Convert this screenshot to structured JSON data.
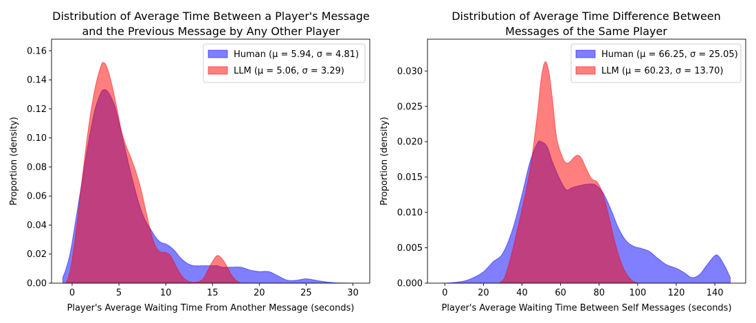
{
  "chart_data": [
    {
      "type": "area",
      "title": [
        "Distribution of Average Time Between a Player's Message",
        "and the Previous Message by Any Other Player"
      ],
      "xlabel": "Player's Average Waiting Time From Another Message (seconds)",
      "ylabel": "Proportion (density)",
      "xlim": [
        -2.2,
        31.8
      ],
      "ylim": [
        0,
        0.168
      ],
      "xticks": [
        0,
        5,
        10,
        15,
        20,
        25,
        30
      ],
      "xtick_labels": [
        "0",
        "5",
        "10",
        "15",
        "20",
        "25",
        "30"
      ],
      "yticks": [
        0,
        0.02,
        0.04,
        0.06,
        0.08,
        0.1,
        0.12,
        0.14,
        0.16
      ],
      "ytick_labels": [
        "0.00",
        "0.02",
        "0.04",
        "0.06",
        "0.08",
        "0.10",
        "0.12",
        "0.14",
        "0.16"
      ],
      "grid": false,
      "legend_placement": "top-right",
      "series": [
        {
          "name": "Human (μ = 5.94, σ = 4.81)",
          "color": "#0000ff",
          "points": [
            [
              -1.0,
              0.004
            ],
            [
              -0.7,
              0.009
            ],
            [
              -0.3,
              0.018
            ],
            [
              0.0,
              0.028
            ],
            [
              0.5,
              0.048
            ],
            [
              1.0,
              0.068
            ],
            [
              1.5,
              0.088
            ],
            [
              2.0,
              0.106
            ],
            [
              2.5,
              0.121
            ],
            [
              3.0,
              0.13
            ],
            [
              3.3,
              0.133
            ],
            [
              3.8,
              0.132
            ],
            [
              4.5,
              0.123
            ],
            [
              5.0,
              0.111
            ],
            [
              5.5,
              0.097
            ],
            [
              6.0,
              0.083
            ],
            [
              6.5,
              0.07
            ],
            [
              7.0,
              0.058
            ],
            [
              7.5,
              0.048
            ],
            [
              8.0,
              0.041
            ],
            [
              8.5,
              0.036
            ],
            [
              9.0,
              0.031
            ],
            [
              9.5,
              0.028
            ],
            [
              10.0,
              0.027
            ],
            [
              10.5,
              0.025
            ],
            [
              11.0,
              0.022
            ],
            [
              11.5,
              0.018
            ],
            [
              12.0,
              0.015
            ],
            [
              12.5,
              0.013
            ],
            [
              13.0,
              0.012
            ],
            [
              14.0,
              0.012
            ],
            [
              15.0,
              0.012
            ],
            [
              15.5,
              0.012
            ],
            [
              16.0,
              0.011
            ],
            [
              17.0,
              0.011
            ],
            [
              18.0,
              0.011
            ],
            [
              19.0,
              0.009
            ],
            [
              20.0,
              0.008
            ],
            [
              21.0,
              0.008
            ],
            [
              22.0,
              0.005
            ],
            [
              23.0,
              0.002
            ],
            [
              24.0,
              0.002
            ],
            [
              25.0,
              0.003
            ],
            [
              26.0,
              0.002
            ],
            [
              27.0,
              0.001
            ],
            [
              28.0,
              0.0003
            ],
            [
              30.0,
              0.0
            ]
          ]
        },
        {
          "name": "LLM (μ = 5.06, σ = 3.29)",
          "color": "#ff0000",
          "points": [
            [
              -0.7,
              0.0
            ],
            [
              -0.4,
              0.004
            ],
            [
              0.0,
              0.016
            ],
            [
              0.5,
              0.04
            ],
            [
              1.0,
              0.068
            ],
            [
              1.5,
              0.095
            ],
            [
              2.0,
              0.118
            ],
            [
              2.5,
              0.136
            ],
            [
              3.0,
              0.148
            ],
            [
              3.3,
              0.152
            ],
            [
              3.7,
              0.149
            ],
            [
              4.2,
              0.138
            ],
            [
              4.8,
              0.12
            ],
            [
              5.3,
              0.104
            ],
            [
              5.8,
              0.094
            ],
            [
              6.3,
              0.086
            ],
            [
              6.8,
              0.077
            ],
            [
              7.3,
              0.066
            ],
            [
              7.8,
              0.052
            ],
            [
              8.3,
              0.038
            ],
            [
              8.8,
              0.027
            ],
            [
              9.3,
              0.022
            ],
            [
              10.0,
              0.021
            ],
            [
              10.5,
              0.019
            ],
            [
              11.0,
              0.013
            ],
            [
              11.5,
              0.007
            ],
            [
              12.0,
              0.003
            ],
            [
              12.5,
              0.001
            ],
            [
              13.0,
              0.0005
            ],
            [
              13.5,
              0.001
            ],
            [
              14.0,
              0.003
            ],
            [
              14.5,
              0.009
            ],
            [
              15.0,
              0.015
            ],
            [
              15.5,
              0.019
            ],
            [
              16.0,
              0.017
            ],
            [
              16.5,
              0.012
            ],
            [
              17.0,
              0.006
            ],
            [
              17.5,
              0.002
            ],
            [
              18.0,
              0.0
            ]
          ]
        }
      ]
    },
    {
      "type": "area",
      "title": [
        "Distribution of Average Time Difference Between",
        "Messages of the Same Player"
      ],
      "xlabel": "Player's Average Waiting Time Between Self Messages (seconds)",
      "ylabel": "Proportion (density)",
      "xlim": [
        -9,
        156
      ],
      "ylim": [
        0,
        0.0345
      ],
      "xticks": [
        0,
        20,
        40,
        60,
        80,
        100,
        120,
        140
      ],
      "xtick_labels": [
        "0",
        "20",
        "40",
        "60",
        "80",
        "100",
        "120",
        "140"
      ],
      "yticks": [
        0,
        0.005,
        0.01,
        0.015,
        0.02,
        0.025,
        0.03
      ],
      "ytick_labels": [
        "0.000",
        "0.005",
        "0.010",
        "0.015",
        "0.020",
        "0.025",
        "0.030"
      ],
      "grid": false,
      "legend_placement": "top-right",
      "series": [
        {
          "name": "Human (μ = 66.25, σ = 25.05)",
          "color": "#0000ff",
          "points": [
            [
              0,
              0.0
            ],
            [
              5,
              0.0001
            ],
            [
              10,
              0.0003
            ],
            [
              15,
              0.0008
            ],
            [
              20,
              0.0016
            ],
            [
              25,
              0.003
            ],
            [
              30,
              0.0042
            ],
            [
              35,
              0.0075
            ],
            [
              40,
              0.0125
            ],
            [
              44,
              0.017
            ],
            [
              48,
              0.0198
            ],
            [
              50,
              0.02
            ],
            [
              53,
              0.0193
            ],
            [
              56,
              0.017
            ],
            [
              60,
              0.0145
            ],
            [
              63,
              0.0132
            ],
            [
              66,
              0.0135
            ],
            [
              70,
              0.0138
            ],
            [
              74,
              0.014
            ],
            [
              78,
              0.0139
            ],
            [
              82,
              0.0128
            ],
            [
              86,
              0.0105
            ],
            [
              90,
              0.0078
            ],
            [
              94,
              0.006
            ],
            [
              98,
              0.0052
            ],
            [
              102,
              0.0049
            ],
            [
              106,
              0.0045
            ],
            [
              110,
              0.0036
            ],
            [
              115,
              0.0026
            ],
            [
              120,
              0.0021
            ],
            [
              124,
              0.0015
            ],
            [
              128,
              0.0008
            ],
            [
              132,
              0.0012
            ],
            [
              136,
              0.0026
            ],
            [
              140,
              0.0039
            ],
            [
              142,
              0.0038
            ],
            [
              145,
              0.0025
            ],
            [
              148,
              0.0008
            ]
          ]
        },
        {
          "name": "LLM (μ = 60.23, σ = 13.70)",
          "color": "#ff0000",
          "points": [
            [
              28,
              0.0
            ],
            [
              31,
              0.0008
            ],
            [
              34,
              0.0035
            ],
            [
              38,
              0.008
            ],
            [
              42,
              0.013
            ],
            [
              45,
              0.0175
            ],
            [
              48,
              0.024
            ],
            [
              50,
              0.029
            ],
            [
              52,
              0.0313
            ],
            [
              54,
              0.0298
            ],
            [
              56,
              0.0255
            ],
            [
              58,
              0.0205
            ],
            [
              61,
              0.0178
            ],
            [
              63,
              0.017
            ],
            [
              65,
              0.0172
            ],
            [
              67,
              0.0178
            ],
            [
              69,
              0.0181
            ],
            [
              71,
              0.0176
            ],
            [
              73,
              0.0164
            ],
            [
              76,
              0.0148
            ],
            [
              79,
              0.0143
            ],
            [
              82,
              0.0126
            ],
            [
              85,
              0.0095
            ],
            [
              88,
              0.006
            ],
            [
              91,
              0.0032
            ],
            [
              94,
              0.0014
            ],
            [
              97,
              0.0004
            ],
            [
              100,
              0.0
            ]
          ]
        }
      ]
    }
  ]
}
